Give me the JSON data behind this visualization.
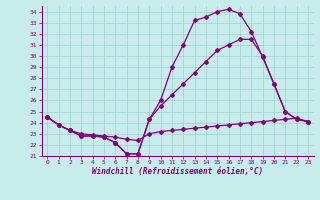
{
  "xlabel": "Windchill (Refroidissement éolien,°C)",
  "bg_color": "#c8ecec",
  "line_color": "#800080",
  "marker": "D",
  "markersize": 2.0,
  "linewidth": 0.9,
  "xlim": [
    -0.5,
    23.5
  ],
  "ylim": [
    21,
    34.5
  ],
  "yticks": [
    21,
    22,
    23,
    24,
    25,
    26,
    27,
    28,
    29,
    30,
    31,
    32,
    33,
    34
  ],
  "xticks": [
    0,
    1,
    2,
    3,
    4,
    5,
    6,
    7,
    8,
    9,
    10,
    11,
    12,
    13,
    14,
    15,
    16,
    17,
    18,
    19,
    20,
    21,
    22,
    23
  ],
  "series": [
    [
      24.5,
      23.8,
      23.3,
      22.8,
      22.8,
      22.7,
      22.2,
      21.2,
      21.2,
      24.3,
      26.0,
      29.0,
      31.0,
      33.2,
      33.5,
      34.0,
      34.2,
      33.8,
      32.2,
      29.9,
      27.5,
      null,
      null,
      24.1
    ],
    [
      24.5,
      23.8,
      23.3,
      22.8,
      22.8,
      22.7,
      22.2,
      21.2,
      21.2,
      24.3,
      25.5,
      26.5,
      27.5,
      28.5,
      29.5,
      30.5,
      31.0,
      31.5,
      31.5,
      30.0,
      27.5,
      25.0,
      null,
      24.1
    ],
    [
      24.5,
      23.8,
      23.3,
      23.0,
      22.9,
      22.8,
      22.7,
      22.5,
      22.4,
      23.0,
      23.2,
      23.3,
      23.4,
      23.5,
      23.6,
      23.7,
      23.8,
      23.9,
      24.0,
      24.1,
      24.2,
      24.3,
      24.4,
      24.1
    ]
  ],
  "series2": [
    [
      24.5,
      23.8,
      23.3,
      22.8,
      22.8,
      22.7,
      22.2,
      21.2,
      21.2,
      24.3,
      26.0,
      29.0,
      31.0,
      33.2,
      33.5,
      34.0,
      34.2,
      33.8,
      32.2,
      29.9,
      27.5,
      25.0,
      24.3,
      24.1
    ],
    [
      24.5,
      23.8,
      23.3,
      22.8,
      22.8,
      22.7,
      22.2,
      21.2,
      21.2,
      24.3,
      25.5,
      26.5,
      27.5,
      28.5,
      29.5,
      30.5,
      31.0,
      31.5,
      31.5,
      30.0,
      27.5,
      25.0,
      24.3,
      24.1
    ],
    [
      24.5,
      23.8,
      23.3,
      23.0,
      22.9,
      22.8,
      22.7,
      22.5,
      22.4,
      23.0,
      23.2,
      23.3,
      23.4,
      23.5,
      23.6,
      23.7,
      23.8,
      23.9,
      24.0,
      24.1,
      24.2,
      24.3,
      24.4,
      24.1
    ]
  ]
}
